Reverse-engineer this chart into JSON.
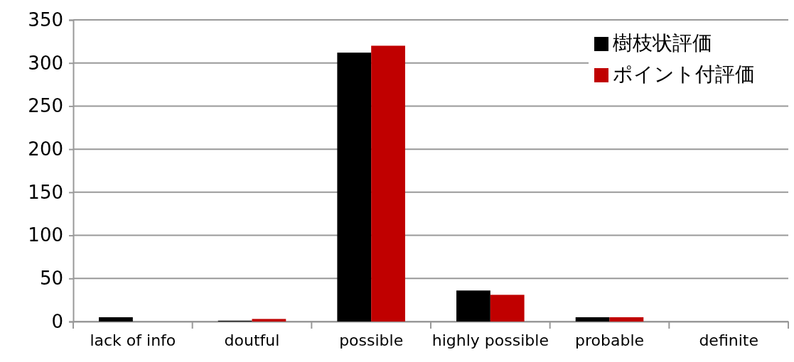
{
  "chart_data": {
    "type": "bar",
    "categories": [
      "lack of info",
      "doutful",
      "possible",
      "highly possible",
      "probable",
      "definite"
    ],
    "series": [
      {
        "name": "樹枝状評価",
        "color": "#000000",
        "values": [
          5,
          1,
          312,
          36,
          5,
          0
        ]
      },
      {
        "name": "ポイント付評価",
        "color": "#c00000",
        "values": [
          0,
          3,
          320,
          31,
          5,
          0
        ]
      }
    ],
    "ylim": [
      0,
      350
    ],
    "yticks": [
      0,
      50,
      100,
      150,
      200,
      250,
      300,
      350
    ],
    "grid": "y",
    "legend": "top right"
  }
}
